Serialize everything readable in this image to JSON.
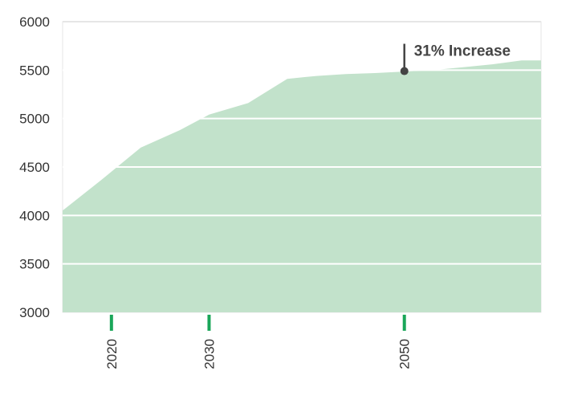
{
  "chart_data": {
    "type": "area",
    "title": "",
    "xlabel": "",
    "ylabel": "",
    "xlim": [
      2015,
      2064
    ],
    "ylim": [
      3000,
      6000
    ],
    "y_ticks": [
      3000,
      3500,
      4000,
      4500,
      5000,
      5500,
      6000
    ],
    "x_ticks": [
      2020,
      2030,
      2050
    ],
    "grid": true,
    "series": [
      {
        "x": [
          2015,
          2019,
          2023,
          2027,
          2030,
          2034,
          2038,
          2041,
          2044,
          2047,
          2050,
          2053,
          2056,
          2059,
          2062,
          2064
        ],
        "y": [
          4050,
          4370,
          4700,
          4880,
          5040,
          5160,
          5410,
          5440,
          5460,
          5470,
          5485,
          5500,
          5530,
          5560,
          5600,
          5600
        ]
      }
    ],
    "annotations": [
      {
        "text": "31% Increase",
        "x": 2050,
        "y": 5490
      }
    ],
    "colors": {
      "area": "#c2e2cb",
      "grid": "#ffffff",
      "tick_mark": "#1aa659",
      "annotation": "#444444",
      "axis": "#e6e6e6"
    }
  }
}
